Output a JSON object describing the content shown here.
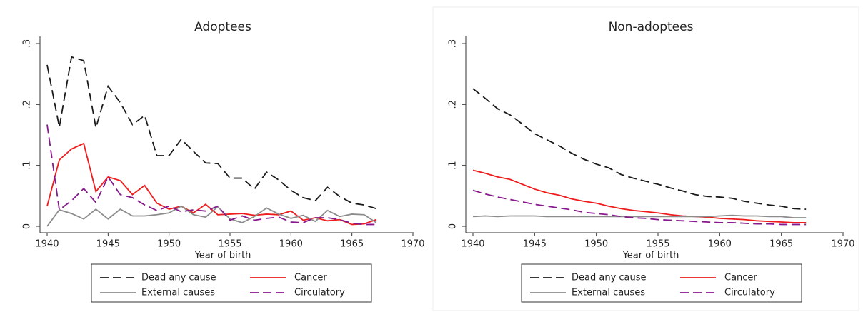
{
  "chart_data": [
    {
      "type": "line",
      "title": "Adoptees",
      "x_label": "Year of birth",
      "x": [
        1940,
        1941,
        1942,
        1943,
        1944,
        1945,
        1946,
        1947,
        1948,
        1949,
        1950,
        1951,
        1952,
        1953,
        1954,
        1955,
        1956,
        1957,
        1958,
        1959,
        1960,
        1961,
        1962,
        1963,
        1964,
        1965,
        1966,
        1967
      ],
      "xlim": [
        1940,
        1970
      ],
      "xticks": [
        1940,
        1945,
        1950,
        1955,
        1960,
        1965,
        1970
      ],
      "ylim": [
        0,
        0.3
      ],
      "yticks": [
        0,
        {
          "value": 0.1,
          "label": ".1"
        },
        {
          "value": 0.2,
          "label": ".2"
        },
        {
          "value": 0.3,
          "label": ".3"
        }
      ],
      "legend": "bottom",
      "series": [
        {
          "name": "Dead any cause",
          "color": "#1a1a1a",
          "style": "dashed",
          "values": [
            0.265,
            0.163,
            0.278,
            0.272,
            0.162,
            0.23,
            0.203,
            0.167,
            0.182,
            0.116,
            0.116,
            0.143,
            0.123,
            0.104,
            0.103,
            0.079,
            0.079,
            0.061,
            0.089,
            0.076,
            0.059,
            0.047,
            0.042,
            0.064,
            0.049,
            0.038,
            0.035,
            0.029
          ]
        },
        {
          "name": "Cancer",
          "color": "#ee1c1c",
          "style": "solid",
          "values": [
            0.033,
            0.109,
            0.127,
            0.136,
            0.057,
            0.081,
            0.075,
            0.052,
            0.067,
            0.038,
            0.028,
            0.033,
            0.022,
            0.036,
            0.019,
            0.02,
            0.021,
            0.018,
            0.02,
            0.019,
            0.025,
            0.01,
            0.014,
            0.009,
            0.011,
            0.003,
            0.004,
            0.011
          ]
        },
        {
          "name": "External causes",
          "color": "#8c8c8c",
          "style": "solid",
          "values": [
            0,
            0.027,
            0.021,
            0.012,
            0.028,
            0.012,
            0.028,
            0.017,
            0.017,
            0.019,
            0.022,
            0.033,
            0.019,
            0.015,
            0.032,
            0.012,
            0.006,
            0.016,
            0.03,
            0.02,
            0.013,
            0.018,
            0.008,
            0.026,
            0.016,
            0.02,
            0.019,
            0.006
          ]
        },
        {
          "name": "Circulatory",
          "color": "#86198c",
          "style": "dashed",
          "values": [
            0.167,
            0.027,
            0.042,
            0.062,
            0.039,
            0.081,
            0.052,
            0.047,
            0.035,
            0.026,
            0.033,
            0.024,
            0.027,
            0.025,
            0.033,
            0.01,
            0.017,
            0.01,
            0.013,
            0.015,
            0.007,
            0.006,
            0.014,
            0.014,
            0.011,
            0.005,
            0.003,
            0.003
          ]
        }
      ]
    },
    {
      "type": "line",
      "title": "Non-adoptees",
      "x_label": "Year of birth",
      "x": [
        1940,
        1941,
        1942,
        1943,
        1944,
        1945,
        1946,
        1947,
        1948,
        1949,
        1950,
        1951,
        1952,
        1953,
        1954,
        1955,
        1956,
        1957,
        1958,
        1959,
        1960,
        1961,
        1962,
        1963,
        1964,
        1965,
        1966,
        1967
      ],
      "xlim": [
        1940,
        1970
      ],
      "xticks": [
        1940,
        1945,
        1950,
        1955,
        1960,
        1965,
        1970
      ],
      "ylim": [
        0,
        0.3
      ],
      "yticks": [
        0,
        {
          "value": 0.1,
          "label": ".1"
        },
        {
          "value": 0.2,
          "label": ".2"
        },
        {
          "value": 0.3,
          "label": ".3"
        }
      ],
      "legend": "bottom",
      "series": [
        {
          "name": "Dead any cause",
          "color": "#1a1a1a",
          "style": "dashed",
          "values": [
            0.226,
            0.21,
            0.193,
            0.183,
            0.168,
            0.152,
            0.142,
            0.132,
            0.12,
            0.11,
            0.102,
            0.096,
            0.085,
            0.079,
            0.074,
            0.069,
            0.063,
            0.058,
            0.052,
            0.049,
            0.048,
            0.046,
            0.041,
            0.038,
            0.035,
            0.033,
            0.029,
            0.028
          ]
        },
        {
          "name": "Cancer",
          "color": "#ee1c1c",
          "style": "solid",
          "values": [
            0.092,
            0.087,
            0.081,
            0.077,
            0.069,
            0.061,
            0.055,
            0.051,
            0.045,
            0.041,
            0.038,
            0.033,
            0.029,
            0.026,
            0.024,
            0.022,
            0.019,
            0.017,
            0.016,
            0.015,
            0.013,
            0.012,
            0.011,
            0.009,
            0.008,
            0.007,
            0.006,
            0.006
          ]
        },
        {
          "name": "External causes",
          "color": "#8c8c8c",
          "style": "solid",
          "values": [
            0.016,
            0.017,
            0.016,
            0.017,
            0.017,
            0.017,
            0.016,
            0.016,
            0.016,
            0.016,
            0.016,
            0.016,
            0.016,
            0.016,
            0.016,
            0.016,
            0.016,
            0.016,
            0.016,
            0.016,
            0.017,
            0.018,
            0.017,
            0.017,
            0.016,
            0.016,
            0.014,
            0.014
          ]
        },
        {
          "name": "Circulatory",
          "color": "#86198c",
          "style": "dashed",
          "values": [
            0.059,
            0.053,
            0.048,
            0.044,
            0.04,
            0.036,
            0.033,
            0.03,
            0.027,
            0.023,
            0.021,
            0.019,
            0.016,
            0.014,
            0.013,
            0.011,
            0.01,
            0.009,
            0.008,
            0.007,
            0.006,
            0.006,
            0.005,
            0.004,
            0.004,
            0.003,
            0.003,
            0.003
          ]
        }
      ]
    }
  ]
}
